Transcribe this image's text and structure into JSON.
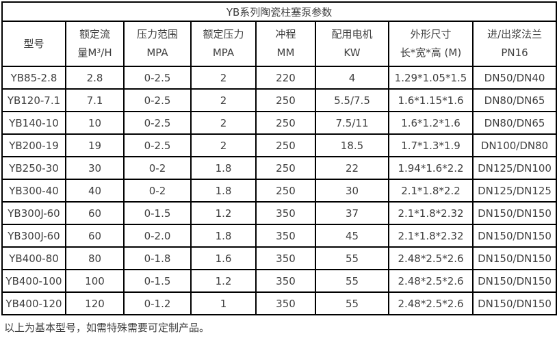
{
  "table": {
    "title": "YB系列陶瓷柱塞泵参数",
    "columns": [
      {
        "line1": "型号",
        "line2": ""
      },
      {
        "line1": "额定流",
        "line2": "量M³/H"
      },
      {
        "line1": "压力范围",
        "line2": "MPA"
      },
      {
        "line1": "额定压力",
        "line2": "MPA"
      },
      {
        "line1": "冲程",
        "line2": "MM"
      },
      {
        "line1": "配用电机",
        "line2": "KW"
      },
      {
        "line1": "外形尺寸",
        "line2": "长*宽*高 (M)"
      },
      {
        "line1": "进/出浆法兰",
        "line2": "PN16"
      }
    ],
    "rows": [
      [
        "YB85-2.8",
        "2.8",
        "0-2.5",
        "2",
        "220",
        "4",
        "1.29*1.05*1.5",
        "DN50/DN40"
      ],
      [
        "YB120-7.1",
        "7.1",
        "0-2.5",
        "2",
        "250",
        "5.5/7.5",
        "1.6*1.15*1.6",
        "DN80/DN65"
      ],
      [
        "YB140-10",
        "10",
        "0-2.5",
        "2",
        "250",
        "7.5/11",
        "1.6*1.2*1.6",
        "DN80/DN65"
      ],
      [
        "YB200-19",
        "19",
        "0-2.5",
        "2",
        "250",
        "18.5",
        "1.7*1.3*1.9",
        "DN100/DN80"
      ],
      [
        "YB250-30",
        "30",
        "0-2",
        "1.8",
        "250",
        "22",
        "1.94*1.6*2.2",
        "DN125/DN100"
      ],
      [
        "YB300-40",
        "40",
        "0-2",
        "1.8",
        "250",
        "30",
        "2.1*1.8*2.2",
        "DN125/DN125"
      ],
      [
        "YB300J-60",
        "60",
        "0-1.5",
        "1.2",
        "350",
        "37",
        "2.1*1.8*2.32",
        "DN150/DN150"
      ],
      [
        "YB300J-60",
        "60",
        "0-2.0",
        "1.8",
        "350",
        "45",
        "2.1*1.8*2.32",
        "DN150/DN150"
      ],
      [
        "YB400-80",
        "80",
        "0-1.8",
        "1.6",
        "350",
        "55",
        "2.48*2.5*2.6",
        "DN150/DN150"
      ],
      [
        "YB400-100",
        "100",
        "0-1.5",
        "1.2",
        "350",
        "55",
        "2.48*2.5*2.6",
        "DN150/DN150"
      ],
      [
        "YB400-120",
        "120",
        "0-1.2",
        "1",
        "350",
        "55",
        "2.48*2.5*2.6",
        "DN150/DN150"
      ]
    ]
  },
  "footer": {
    "note": "以上为基本型号，如需特殊需要可定制产品。"
  },
  "colors": {
    "border": "#000000",
    "text": "#3f3f3f",
    "background": "#ffffff"
  }
}
